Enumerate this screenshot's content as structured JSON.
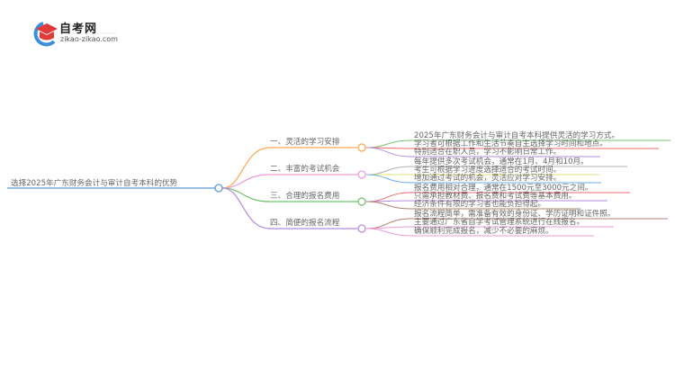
{
  "logo": {
    "title": "自考网",
    "url": "zikao-zikao.com"
  },
  "root": {
    "label": "选择2025年广东财务会计与审计自考本科的优势",
    "color": "#5b9bd5"
  },
  "branches": [
    {
      "label": "一、灵活的学习安排",
      "color": "#ffa750",
      "leaves": [
        {
          "text": "2025年广东财务会计与审计自考本科提供灵活的学习方式。",
          "color": "#6cc56c"
        },
        {
          "text": "学习者可根据工作和生活节奏自主选择学习时间和地点。",
          "color": "#f06a6a"
        },
        {
          "text": "特别适合在职人员，学习不影响日常工作。",
          "color": "#b48be0"
        }
      ]
    },
    {
      "label": "二、丰富的考试机会",
      "color": "#f09ad8",
      "leaves": [
        {
          "text": "每年提供多次考试机会，通常在1月、4月和10月。",
          "color": "#b0b0b0"
        },
        {
          "text": "考生可根据学习进度选择适合的考试时间。",
          "color": "#e6e07a"
        },
        {
          "text": "增加通过考试的机会，灵活应对学习安排。",
          "color": "#6aaee8"
        }
      ]
    },
    {
      "label": "三、合理的报名费用",
      "color": "#6cc56c",
      "leaves": [
        {
          "text": "报名费用相对合理，通常在1500元至3000元之间。",
          "color": "#f06a6a"
        },
        {
          "text": "只需承担教材费、报名费和考试费等基本费用。",
          "color": "#b48be0"
        },
        {
          "text": "经济条件有限的学习者也能负担得起。",
          "color": "#b08070"
        }
      ]
    },
    {
      "label": "四、简便的报名流程",
      "color": "#b48be0",
      "leaves": [
        {
          "text": "报名流程简单，需准备有效的身份证、学历证明和证件照。",
          "color": "#b08070"
        },
        {
          "text": "主要通过广东省自学考试管理系统进行在线报名。",
          "color": "#f09ad8"
        },
        {
          "text": "确保顺利完成报名，减少不必要的麻烦。",
          "color": "#f09ad8"
        }
      ]
    }
  ]
}
